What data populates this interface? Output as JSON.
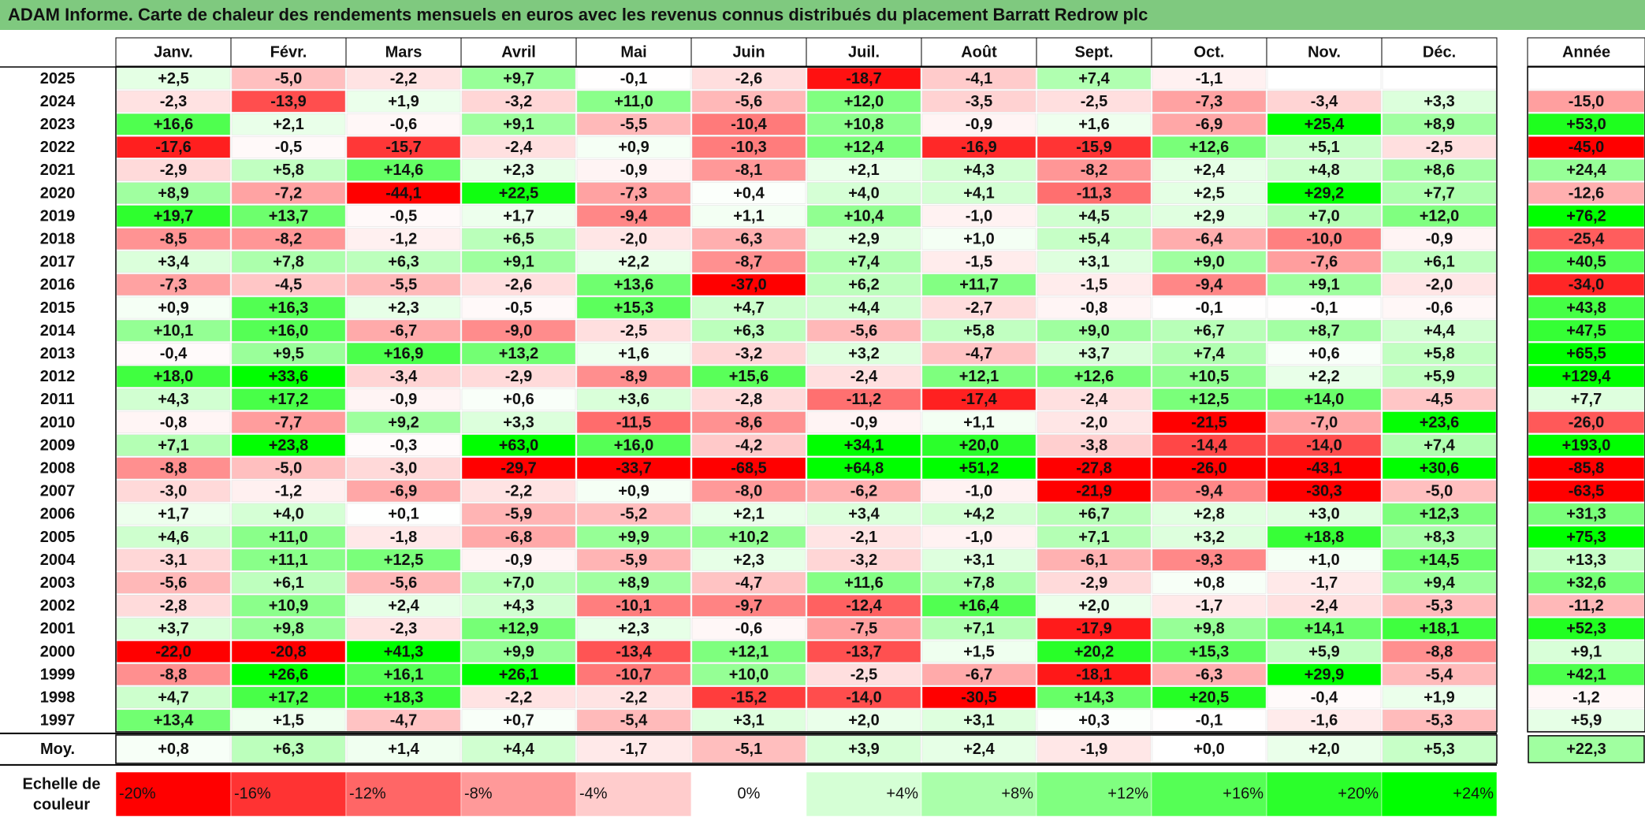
{
  "title": "ADAM Informe. Carte de chaleur des rendements mensuels en euros avec les revenus connus distribués du placement Barratt Redrow plc",
  "chart_data": {
    "type": "heatmap",
    "title": "ADAM Informe. Carte de chaleur des rendements mensuels en euros avec les revenus connus distribués du placement Barratt Redrow plc",
    "months": [
      "Janv.",
      "Févr.",
      "Mars",
      "Avril",
      "Mai",
      "Juin",
      "Juil.",
      "Août",
      "Sept.",
      "Oct.",
      "Nov.",
      "Déc."
    ],
    "year_header": "Année",
    "rows": [
      {
        "year": "2025",
        "values": [
          "+2,5",
          "-5,0",
          "-2,2",
          "+9,7",
          "-0,1",
          "-2,6",
          "-18,7",
          "-4,1",
          "+7,4",
          "-1,1",
          "",
          ""
        ],
        "annual": ""
      },
      {
        "year": "2024",
        "values": [
          "-2,3",
          "-13,9",
          "+1,9",
          "-3,2",
          "+11,0",
          "-5,6",
          "+12,0",
          "-3,5",
          "-2,5",
          "-7,3",
          "-3,4",
          "+3,3"
        ],
        "annual": "-15,0"
      },
      {
        "year": "2023",
        "values": [
          "+16,6",
          "+2,1",
          "-0,6",
          "+9,1",
          "-5,5",
          "-10,4",
          "+10,8",
          "-0,9",
          "+1,6",
          "-6,9",
          "+25,4",
          "+8,9"
        ],
        "annual": "+53,0"
      },
      {
        "year": "2022",
        "values": [
          "-17,6",
          "-0,5",
          "-15,7",
          "-2,4",
          "+0,9",
          "-10,3",
          "+12,4",
          "-16,9",
          "-15,9",
          "+12,6",
          "+5,1",
          "-2,5"
        ],
        "annual": "-45,0"
      },
      {
        "year": "2021",
        "values": [
          "-2,9",
          "+5,8",
          "+14,6",
          "+2,3",
          "-0,9",
          "-8,1",
          "+2,1",
          "+4,3",
          "-8,2",
          "+2,4",
          "+4,8",
          "+8,6"
        ],
        "annual": "+24,4"
      },
      {
        "year": "2020",
        "values": [
          "+8,9",
          "-7,2",
          "-44,1",
          "+22,5",
          "-7,3",
          "+0,4",
          "+4,0",
          "+4,1",
          "-11,3",
          "+2,5",
          "+29,2",
          "+7,7"
        ],
        "annual": "-12,6"
      },
      {
        "year": "2019",
        "values": [
          "+19,7",
          "+13,7",
          "-0,5",
          "+1,7",
          "-9,4",
          "+1,1",
          "+10,4",
          "-1,0",
          "+4,5",
          "+2,9",
          "+7,0",
          "+12,0"
        ],
        "annual": "+76,2"
      },
      {
        "year": "2018",
        "values": [
          "-8,5",
          "-8,2",
          "-1,2",
          "+6,5",
          "-2,0",
          "-6,3",
          "+2,9",
          "+1,0",
          "+5,4",
          "-6,4",
          "-10,0",
          "-0,9"
        ],
        "annual": "-25,4"
      },
      {
        "year": "2017",
        "values": [
          "+3,4",
          "+7,8",
          "+6,3",
          "+9,1",
          "+2,2",
          "-8,7",
          "+7,4",
          "-1,5",
          "+3,1",
          "+9,0",
          "-7,6",
          "+6,1"
        ],
        "annual": "+40,5"
      },
      {
        "year": "2016",
        "values": [
          "-7,3",
          "-4,5",
          "-5,5",
          "-2,6",
          "+13,6",
          "-37,0",
          "+6,2",
          "+11,7",
          "-1,5",
          "-9,4",
          "+9,1",
          "-2,0"
        ],
        "annual": "-34,0"
      },
      {
        "year": "2015",
        "values": [
          "+0,9",
          "+16,3",
          "+2,3",
          "-0,5",
          "+15,3",
          "+4,7",
          "+4,4",
          "-2,7",
          "-0,8",
          "-0,1",
          "-0,1",
          "-0,6"
        ],
        "annual": "+43,8"
      },
      {
        "year": "2014",
        "values": [
          "+10,1",
          "+16,0",
          "-6,7",
          "-9,0",
          "-2,5",
          "+6,3",
          "-5,6",
          "+5,8",
          "+9,0",
          "+6,7",
          "+8,7",
          "+4,4"
        ],
        "annual": "+47,5"
      },
      {
        "year": "2013",
        "values": [
          "-0,4",
          "+9,5",
          "+16,9",
          "+13,2",
          "+1,6",
          "-3,2",
          "+3,2",
          "-4,7",
          "+3,7",
          "+7,4",
          "+0,6",
          "+5,8"
        ],
        "annual": "+65,5"
      },
      {
        "year": "2012",
        "values": [
          "+18,0",
          "+33,6",
          "-3,4",
          "-2,9",
          "-8,9",
          "+15,6",
          "-2,4",
          "+12,1",
          "+12,6",
          "+10,5",
          "+2,2",
          "+5,9"
        ],
        "annual": "+129,4"
      },
      {
        "year": "2011",
        "values": [
          "+4,3",
          "+17,2",
          "-0,9",
          "+0,6",
          "+3,6",
          "-2,8",
          "-11,2",
          "-17,4",
          "-2,4",
          "+12,5",
          "+14,0",
          "-4,5"
        ],
        "annual": "+7,7"
      },
      {
        "year": "2010",
        "values": [
          "-0,8",
          "-7,7",
          "+9,2",
          "+3,3",
          "-11,5",
          "-8,6",
          "-0,9",
          "+1,1",
          "-2,0",
          "-21,5",
          "-7,0",
          "+23,6"
        ],
        "annual": "-26,0"
      },
      {
        "year": "2009",
        "values": [
          "+7,1",
          "+23,8",
          "-0,3",
          "+63,0",
          "+16,0",
          "-4,2",
          "+34,1",
          "+20,0",
          "-3,8",
          "-14,4",
          "-14,0",
          "+7,4"
        ],
        "annual": "+193,0"
      },
      {
        "year": "2008",
        "values": [
          "-8,8",
          "-5,0",
          "-3,0",
          "-29,7",
          "-33,7",
          "-68,5",
          "+64,8",
          "+51,2",
          "-27,8",
          "-26,0",
          "-43,1",
          "+30,6"
        ],
        "annual": "-85,8"
      },
      {
        "year": "2007",
        "values": [
          "-3,0",
          "-1,2",
          "-6,9",
          "-2,2",
          "+0,9",
          "-8,0",
          "-6,2",
          "-1,0",
          "-21,9",
          "-9,4",
          "-30,3",
          "-5,0"
        ],
        "annual": "-63,5"
      },
      {
        "year": "2006",
        "values": [
          "+1,7",
          "+4,0",
          "+0,1",
          "-5,9",
          "-5,2",
          "+2,1",
          "+3,4",
          "+4,2",
          "+6,7",
          "+2,8",
          "+3,0",
          "+12,3"
        ],
        "annual": "+31,3"
      },
      {
        "year": "2005",
        "values": [
          "+4,6",
          "+11,0",
          "-1,8",
          "-6,8",
          "+9,9",
          "+10,2",
          "-2,1",
          "-1,0",
          "+7,1",
          "+3,2",
          "+18,8",
          "+8,3"
        ],
        "annual": "+75,3"
      },
      {
        "year": "2004",
        "values": [
          "-3,1",
          "+11,1",
          "+12,5",
          "-0,9",
          "-5,9",
          "+2,3",
          "-3,2",
          "+3,1",
          "-6,1",
          "-9,3",
          "+1,0",
          "+14,5"
        ],
        "annual": "+13,3"
      },
      {
        "year": "2003",
        "values": [
          "-5,6",
          "+6,1",
          "-5,6",
          "+7,0",
          "+8,9",
          "-4,7",
          "+11,6",
          "+7,8",
          "-2,9",
          "+0,8",
          "-1,7",
          "+9,4"
        ],
        "annual": "+32,6"
      },
      {
        "year": "2002",
        "values": [
          "-2,8",
          "+10,9",
          "+2,4",
          "+4,3",
          "-10,1",
          "-9,7",
          "-12,4",
          "+16,4",
          "+2,0",
          "-1,7",
          "-2,4",
          "-5,3"
        ],
        "annual": "-11,2"
      },
      {
        "year": "2001",
        "values": [
          "+3,7",
          "+9,8",
          "-2,3",
          "+12,9",
          "+2,3",
          "-0,6",
          "-7,5",
          "+7,1",
          "-17,9",
          "+9,8",
          "+14,1",
          "+18,1"
        ],
        "annual": "+52,3"
      },
      {
        "year": "2000",
        "values": [
          "-22,0",
          "-20,8",
          "+41,3",
          "+9,9",
          "-13,4",
          "+12,1",
          "-13,7",
          "+1,5",
          "+20,2",
          "+15,3",
          "+5,9",
          "-8,8"
        ],
        "annual": "+9,1"
      },
      {
        "year": "1999",
        "values": [
          "-8,8",
          "+26,6",
          "+16,1",
          "+26,1",
          "-10,7",
          "+10,0",
          "-2,5",
          "-6,7",
          "-18,1",
          "-6,3",
          "+29,9",
          "-5,4"
        ],
        "annual": "+42,1"
      },
      {
        "year": "1998",
        "values": [
          "+4,7",
          "+17,2",
          "+18,3",
          "-2,2",
          "-2,2",
          "-15,2",
          "-14,0",
          "-30,5",
          "+14,3",
          "+20,5",
          "-0,4",
          "+1,9"
        ],
        "annual": "-1,2"
      },
      {
        "year": "1997",
        "values": [
          "+13,4",
          "+1,5",
          "-4,7",
          "+0,7",
          "-5,4",
          "+3,1",
          "+2,0",
          "+3,1",
          "+0,3",
          "-0,1",
          "-1,6",
          "-5,3"
        ],
        "annual": "+5,9"
      }
    ],
    "average": {
      "label": "Moy.",
      "values": [
        "+0,8",
        "+6,3",
        "+1,4",
        "+4,4",
        "-1,7",
        "-5,1",
        "+3,9",
        "+2,4",
        "-1,9",
        "+0,0",
        "+2,0",
        "+5,3"
      ],
      "annual": "+22,3"
    },
    "scale": {
      "label": "Echelle de couleur",
      "stops": [
        "-20%",
        "-16%",
        "-12%",
        "-8%",
        "-4%",
        "0%",
        "+4%",
        "+8%",
        "+12%",
        "+16%",
        "+20%",
        "+24%"
      ],
      "values": [
        -20,
        -16,
        -12,
        -8,
        -4,
        0,
        4,
        8,
        12,
        16,
        20,
        24
      ]
    },
    "colors": {
      "negative_max": "#ff0000",
      "neutral": "#ffffff",
      "positive_max": "#00ff00",
      "title_bar": "#7fc97f"
    }
  }
}
